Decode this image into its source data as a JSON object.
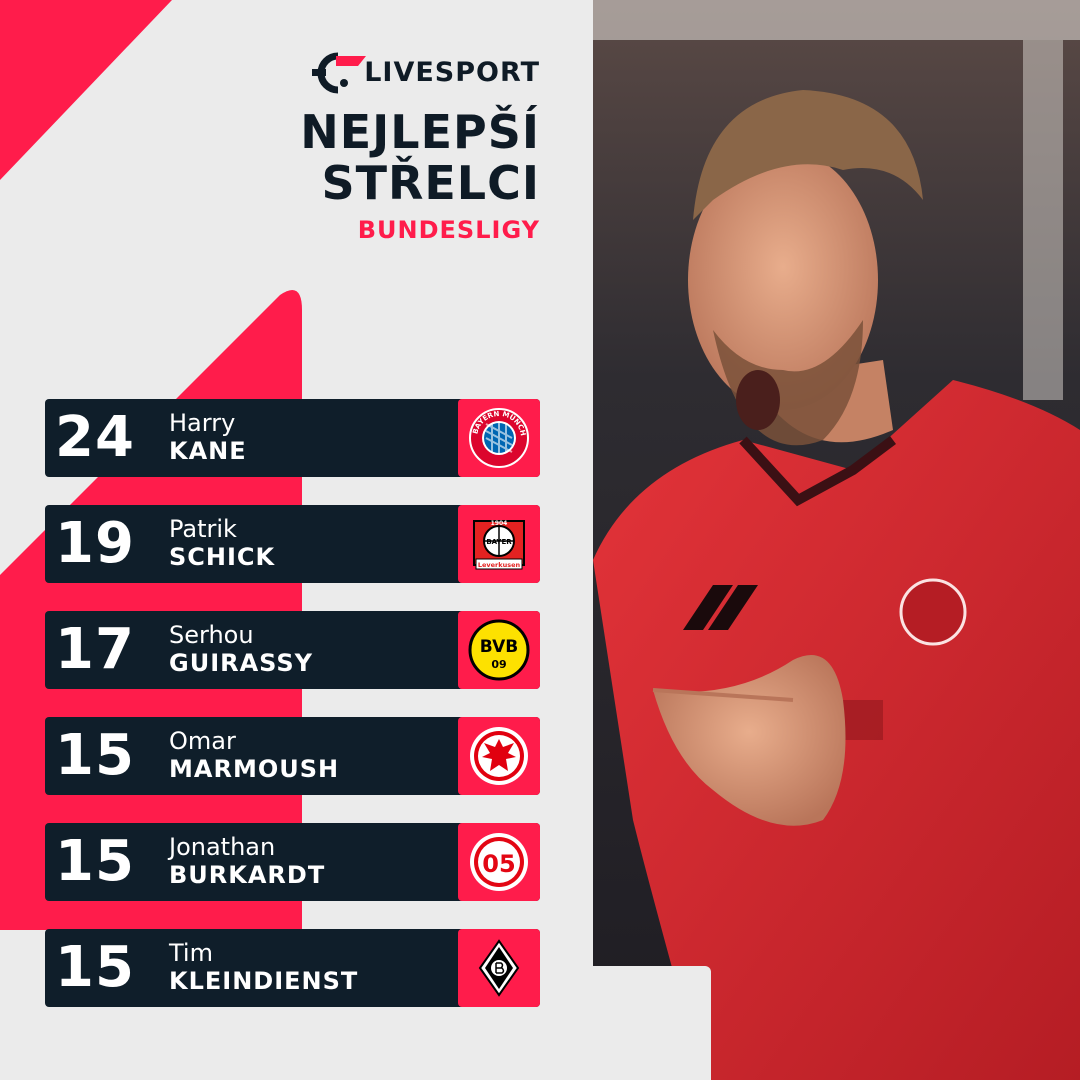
{
  "brand": {
    "name": "LIVESPORT",
    "accent_color": "#ff1c4b",
    "dark_color": "#0f1e2a"
  },
  "header": {
    "title_line1": "NEJLEPŠÍ",
    "title_line2": "STŘELCI",
    "subtitle": "BUNDESLIGY"
  },
  "scorers": [
    {
      "goals": "24",
      "first_name": "Harry",
      "last_name": "KANE",
      "club_icon": "fc-bayern-munchen-crest-icon"
    },
    {
      "goals": "19",
      "first_name": "Patrik",
      "last_name": "SCHICK",
      "club_icon": "bayer-leverkusen-crest-icon"
    },
    {
      "goals": "17",
      "first_name": "Serhou",
      "last_name": "GUIRASSY",
      "club_icon": "bvb-09-crest-icon"
    },
    {
      "goals": "15",
      "first_name": "Omar",
      "last_name": "MARMOUSH",
      "club_icon": "eintracht-frankfurt-crest-icon"
    },
    {
      "goals": "15",
      "first_name": "Jonathan",
      "last_name": "BURKARDT",
      "club_icon": "mainz-05-crest-icon"
    },
    {
      "goals": "15",
      "first_name": "Tim",
      "last_name": "KLEINDIENST",
      "club_icon": "borussia-monchengladbach-crest-icon"
    }
  ],
  "crest_text": {
    "bayern": "FC BAYERN MÜNCHEN",
    "leverkusen_top": "1904",
    "leverkusen_mid": "BAYER",
    "leverkusen_bottom": "Leverkusen",
    "bvb": "BVB",
    "bvb_num": "09",
    "mainz": "05"
  },
  "photo": {
    "description_icon": "player-celebrating-photo",
    "jersey_color": "#d8232a"
  }
}
